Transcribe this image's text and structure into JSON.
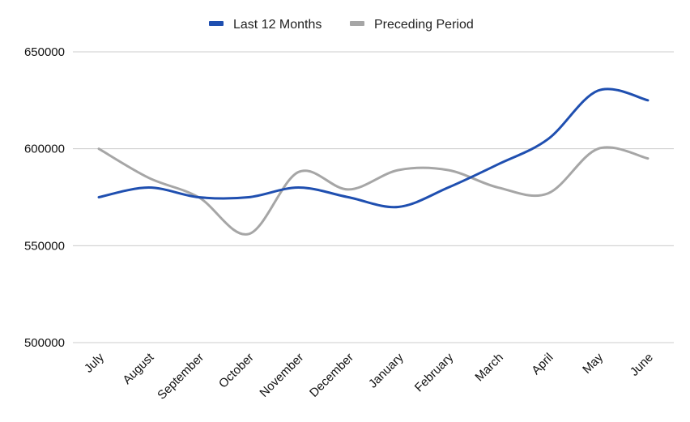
{
  "chart_data": {
    "type": "line",
    "title": "",
    "xlabel": "",
    "ylabel": "",
    "categories": [
      "July",
      "August",
      "September",
      "October",
      "November",
      "December",
      "January",
      "February",
      "March",
      "April",
      "May",
      "June"
    ],
    "series": [
      {
        "name": "Last 12 Months",
        "color": "#1f4fb0",
        "values": [
          575000,
          580000,
          575000,
          575000,
          580000,
          575000,
          570000,
          580000,
          592000,
          605000,
          630000,
          625000
        ]
      },
      {
        "name": "Preceding Period",
        "color": "#a6a6a6",
        "values": [
          600000,
          585000,
          575000,
          556000,
          588000,
          579000,
          589000,
          589000,
          580000,
          577000,
          600000,
          595000
        ]
      }
    ],
    "ylim": [
      500000,
      650000
    ],
    "yticks": [
      "500000",
      "550000",
      "600000",
      "650000"
    ],
    "grid": true,
    "legend_position": "top-center",
    "smooth": true
  }
}
